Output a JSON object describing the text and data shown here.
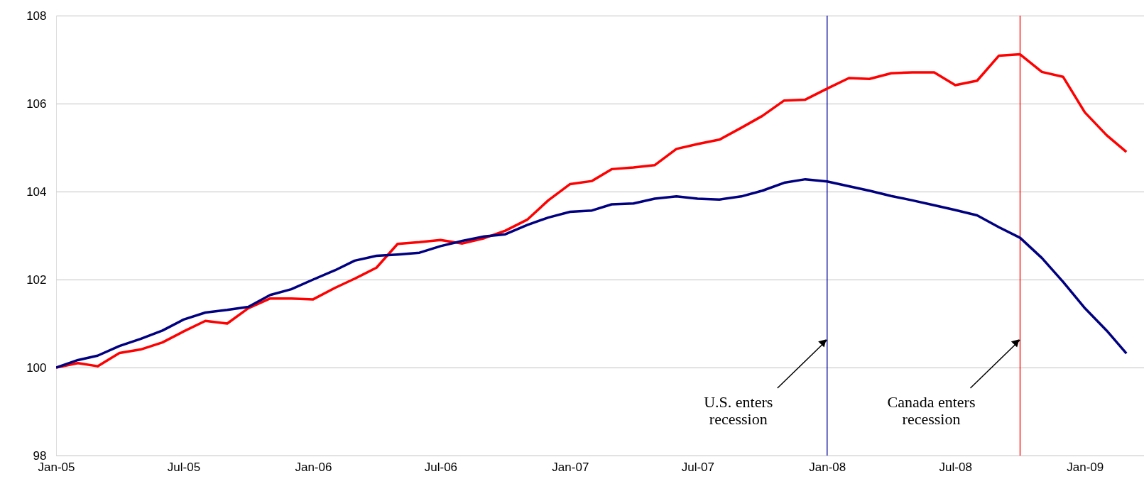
{
  "chart_data": {
    "type": "line",
    "x": [
      "2005-01",
      "2005-02",
      "2005-03",
      "2005-04",
      "2005-05",
      "2005-06",
      "2005-07",
      "2005-08",
      "2005-09",
      "2005-10",
      "2005-11",
      "2005-12",
      "2006-01",
      "2006-02",
      "2006-03",
      "2006-04",
      "2006-05",
      "2006-06",
      "2006-07",
      "2006-08",
      "2006-09",
      "2006-10",
      "2006-11",
      "2006-12",
      "2007-01",
      "2007-02",
      "2007-03",
      "2007-04",
      "2007-05",
      "2007-06",
      "2007-07",
      "2007-08",
      "2007-09",
      "2007-10",
      "2007-11",
      "2007-12",
      "2008-01",
      "2008-02",
      "2008-03",
      "2008-04",
      "2008-05",
      "2008-06",
      "2008-07",
      "2008-08",
      "2008-09",
      "2008-10",
      "2008-11",
      "2008-12",
      "2009-01",
      "2009-02",
      "2009-03"
    ],
    "series": [
      {
        "color": "#ff0000",
        "values": [
          100,
          100.1,
          100.03,
          100.33,
          100.41,
          100.57,
          100.82,
          101.06,
          101.0,
          101.35,
          101.57,
          101.57,
          101.55,
          101.81,
          102.02,
          102.27,
          102.81,
          102.85,
          102.9,
          102.82,
          102.94,
          103.11,
          103.36,
          103.8,
          104.17,
          104.24,
          104.51,
          104.55,
          104.6,
          104.97,
          105.08,
          105.18,
          105.45,
          105.72,
          106.07,
          106.09,
          106.34,
          106.58,
          106.56,
          106.69,
          106.71,
          106.71,
          106.42,
          106.52,
          107.09,
          107.12,
          106.72,
          106.61,
          105.8,
          105.28,
          104.9
        ]
      },
      {
        "color": "#000080",
        "values": [
          100,
          100.17,
          100.27,
          100.49,
          100.65,
          100.84,
          101.09,
          101.25,
          101.31,
          101.38,
          101.65,
          101.78,
          102.0,
          102.21,
          102.43,
          102.54,
          102.57,
          102.61,
          102.76,
          102.88,
          102.98,
          103.03,
          103.24,
          103.41,
          103.54,
          103.57,
          103.71,
          103.73,
          103.84,
          103.89,
          103.84,
          103.82,
          103.89,
          104.02,
          104.2,
          104.28,
          104.23,
          104.12,
          104.02,
          103.9,
          103.8,
          103.69,
          103.58,
          103.46,
          103.19,
          102.95,
          102.49,
          101.95,
          101.35,
          100.84,
          100.32
        ]
      }
    ],
    "xlim": [
      "2005-01",
      "2009-03-26"
    ],
    "xticks": [
      {
        "value": "2005-01",
        "label": "Jan-05"
      },
      {
        "value": "2005-07",
        "label": "Jul-05"
      },
      {
        "value": "2006-01",
        "label": "Jan-06"
      },
      {
        "value": "2006-07",
        "label": "Jul-06"
      },
      {
        "value": "2007-01",
        "label": "Jan-07"
      },
      {
        "value": "2007-07",
        "label": "Jul-07"
      },
      {
        "value": "2008-01",
        "label": "Jan-08"
      },
      {
        "value": "2008-07",
        "label": "Jul-08"
      },
      {
        "value": "2009-01",
        "label": "Jan-09"
      }
    ],
    "ylim": [
      98,
      108
    ],
    "yticks": [
      98,
      100,
      102,
      104,
      106,
      108
    ],
    "grid": "y",
    "marker": "none",
    "line_style": "solid",
    "ref_lines": [
      {
        "axis": "x",
        "value": "2008-01",
        "color": "#000099",
        "label": "U.S. enters\nrecession"
      },
      {
        "axis": "x",
        "value": "2008-10",
        "color": "#ff0000",
        "label": "Canada enters\nrecession"
      }
    ]
  }
}
